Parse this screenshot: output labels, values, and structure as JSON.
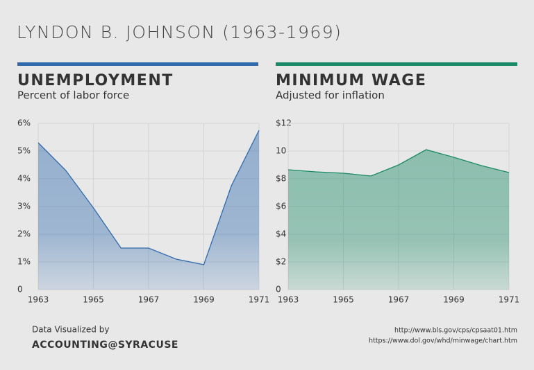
{
  "header": {
    "title": "LYNDON B. JOHNSON (1963-1969)"
  },
  "chart_data": [
    {
      "type": "area",
      "title": "UNEMPLOYMENT",
      "subtitle": "Percent of labor force",
      "x": [
        1963,
        1964,
        1965,
        1966,
        1967,
        1968,
        1969,
        1970,
        1971
      ],
      "values": [
        5.3,
        4.3,
        2.95,
        1.5,
        1.5,
        1.1,
        0.9,
        3.75,
        5.75
      ],
      "color": "#2f6aae",
      "xlim": [
        1963,
        1971
      ],
      "xticks": [
        1963,
        1965,
        1967,
        1969,
        1971
      ],
      "ylim": [
        0,
        6
      ],
      "yticks": [
        0,
        {
          "value": 1,
          "label": "1%"
        },
        {
          "value": 2,
          "label": "2%"
        },
        {
          "value": 3,
          "label": "3%"
        },
        {
          "value": 4,
          "label": "4%"
        },
        {
          "value": 5,
          "label": "5%"
        },
        {
          "value": 6,
          "label": "6%"
        }
      ],
      "grid": true
    },
    {
      "type": "area",
      "title": "MINIMUM WAGE",
      "subtitle": "Adjusted for inflation",
      "x": [
        1963,
        1964,
        1965,
        1966,
        1967,
        1968,
        1969,
        1970,
        1971
      ],
      "values": [
        8.65,
        8.5,
        8.4,
        8.2,
        9.0,
        10.1,
        9.55,
        8.95,
        8.45
      ],
      "color": "#1b8a66",
      "xlim": [
        1963,
        1971
      ],
      "xticks": [
        1963,
        1965,
        1967,
        1969,
        1971
      ],
      "ylim": [
        0,
        12
      ],
      "yticks": [
        0,
        {
          "value": 2,
          "label": "$2"
        },
        {
          "value": 4,
          "label": "$4"
        },
        {
          "value": 6,
          "label": "$6"
        },
        {
          "value": 8,
          "label": "$8"
        },
        10,
        {
          "value": 12,
          "label": "$12"
        }
      ],
      "grid": true
    }
  ],
  "footer": {
    "credit_label": "Data Visualized by",
    "credit_name": "ACCOUNTING@SYRACUSE",
    "sources": [
      "http://www.bls.gov/cps/cpsaat01.htm",
      "https://www.dol.gov/whd/minwage/chart.htm"
    ]
  }
}
